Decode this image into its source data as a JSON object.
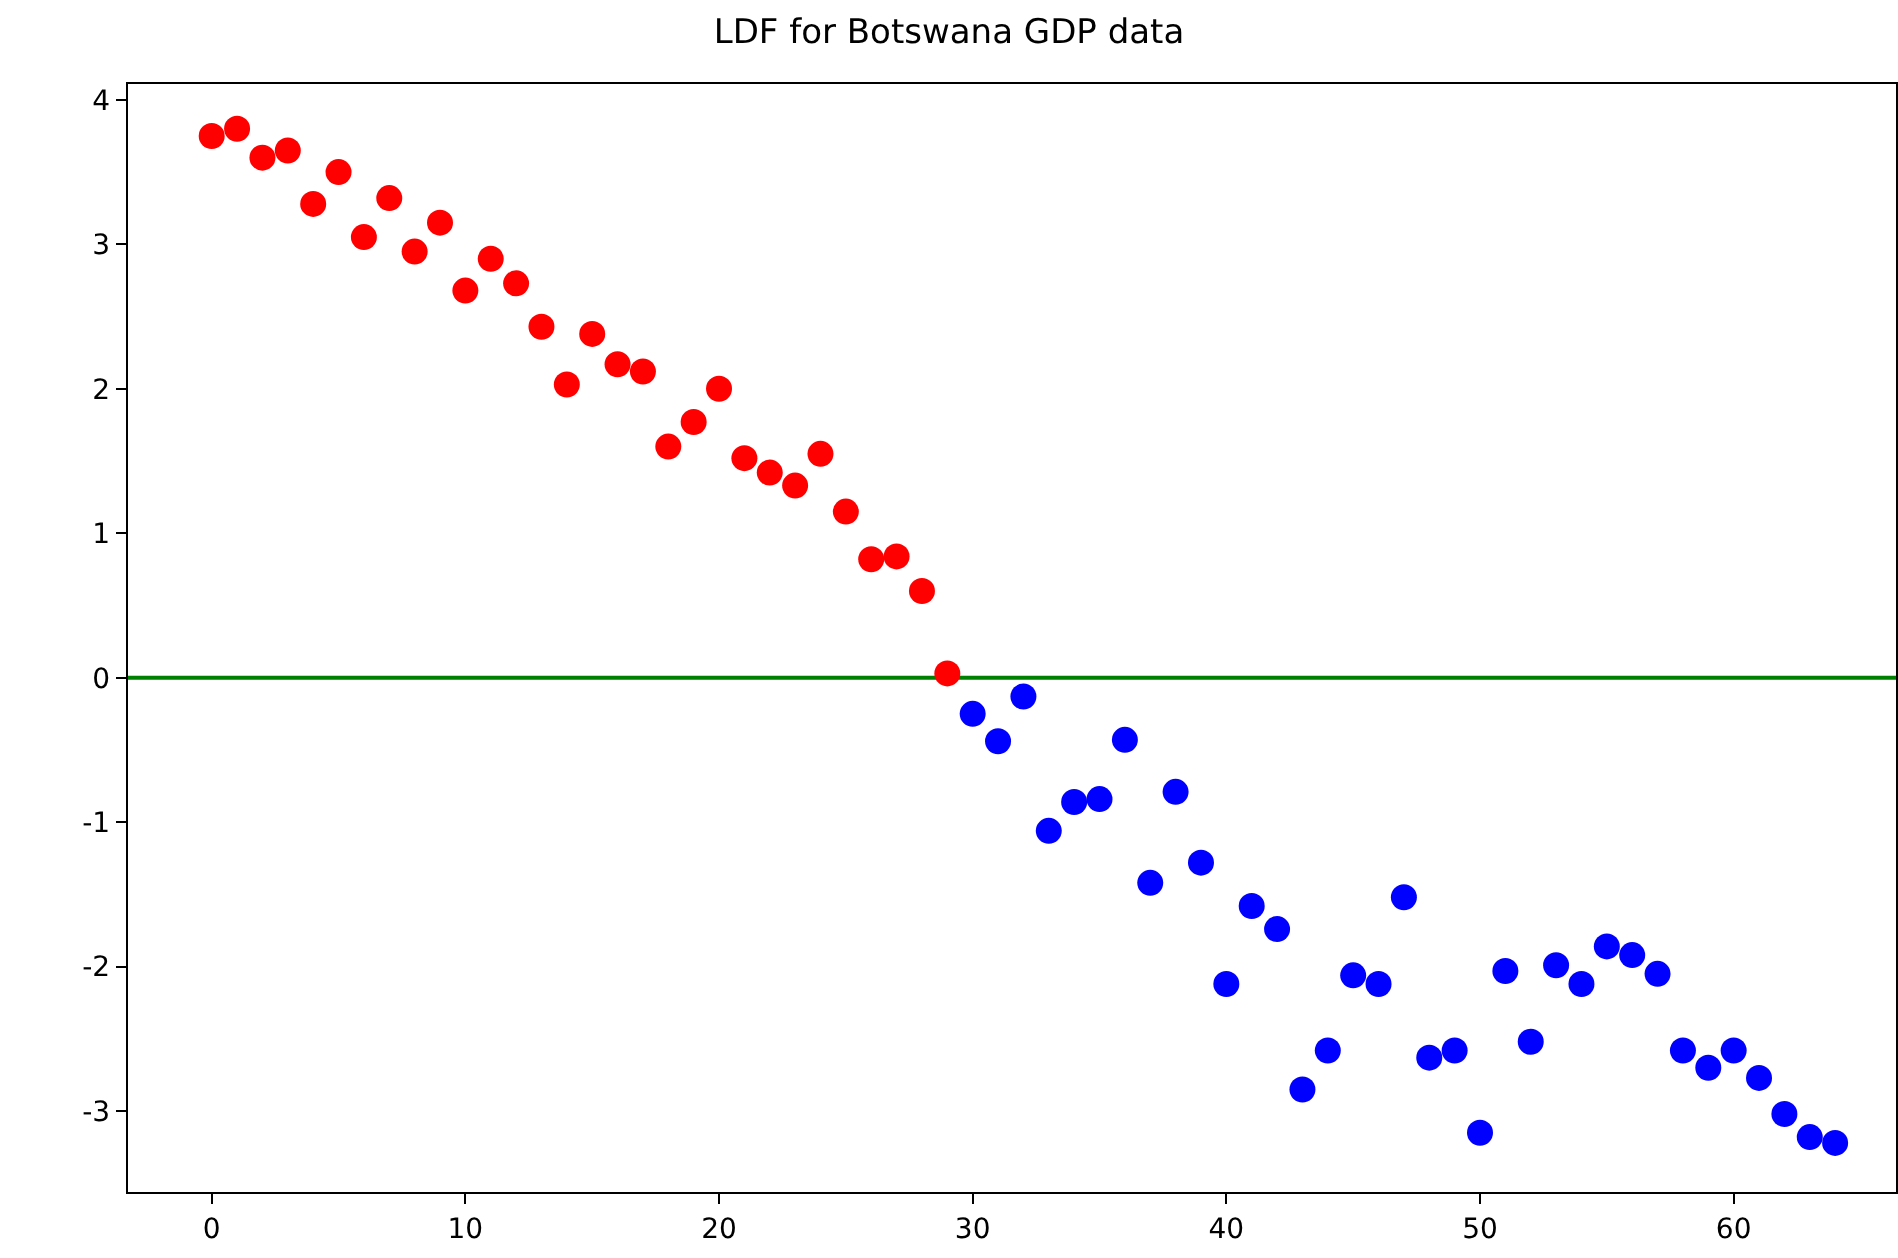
{
  "chart_data": {
    "type": "scatter",
    "title": "LDF for Botswana GDP data",
    "marker": "circle",
    "grid": false,
    "xlim": [
      -3.3,
      66.4
    ],
    "xticks": [
      0,
      10,
      20,
      30,
      40,
      50,
      60
    ],
    "ylim": [
      -3.56,
      4.11
    ],
    "yticks": [
      -3,
      -2,
      -1,
      0,
      1,
      2,
      3,
      4
    ],
    "series": [
      {
        "color": "#ff0000",
        "x": [
          0,
          1,
          2,
          3,
          4,
          5,
          6,
          7,
          8,
          9,
          10,
          11,
          12,
          13,
          14,
          15,
          16,
          17,
          18,
          19,
          20,
          21,
          22,
          23,
          24,
          25,
          26,
          27,
          28,
          29
        ],
        "values": [
          3.75,
          3.8,
          3.6,
          3.65,
          3.28,
          3.5,
          3.05,
          3.32,
          2.95,
          3.15,
          2.68,
          2.9,
          2.73,
          2.43,
          2.03,
          2.38,
          2.17,
          2.12,
          1.6,
          1.77,
          2.0,
          1.52,
          1.42,
          1.33,
          1.55,
          1.15,
          0.82,
          0.84,
          0.6,
          0.03
        ]
      },
      {
        "color": "#0000ff",
        "x": [
          30,
          31,
          32,
          33,
          34,
          35,
          36,
          37,
          38,
          39,
          40,
          41,
          42,
          43,
          44,
          45,
          46,
          47,
          48,
          49,
          50,
          51,
          52,
          53,
          54,
          55,
          56,
          57,
          58,
          59,
          60,
          61,
          62,
          63,
          64
        ],
        "values": [
          -0.25,
          -0.44,
          -0.13,
          -1.06,
          -0.86,
          -0.84,
          -0.43,
          -1.42,
          -0.79,
          -1.28,
          -2.12,
          -1.58,
          -1.74,
          -2.85,
          -2.58,
          -2.06,
          -2.12,
          -1.52,
          -2.63,
          -2.58,
          -3.15,
          -2.03,
          -2.52,
          -1.99,
          -2.12,
          -1.86,
          -1.92,
          -2.05,
          -2.58,
          -2.7,
          -2.58,
          -2.77,
          -3.02,
          -3.18,
          -3.22
        ]
      }
    ],
    "ref_lines": [
      {
        "axis": "y",
        "value": 0,
        "color": "#008000"
      }
    ]
  }
}
